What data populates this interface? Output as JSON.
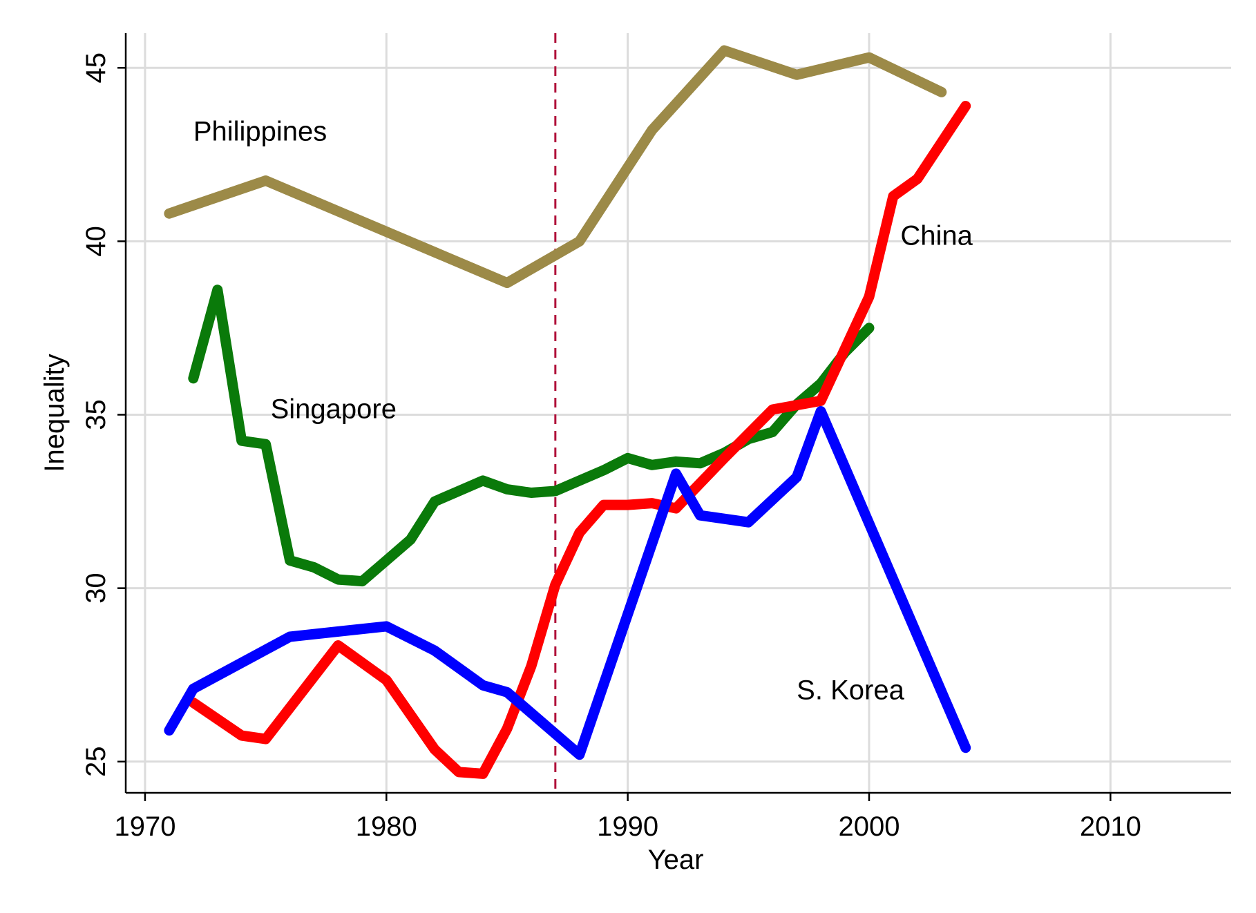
{
  "chart_data": {
    "type": "line",
    "xlabel": "Year",
    "ylabel": "Inequality",
    "xlim": [
      1969.2,
      2015
    ],
    "ylim": [
      24.1,
      46
    ],
    "xticks": [
      1970,
      1980,
      1990,
      2000,
      2010
    ],
    "yticks": [
      25,
      30,
      35,
      40,
      45
    ],
    "grid": true,
    "reference_line": {
      "x": 1987,
      "color": "#b0103a",
      "style": "dashed"
    },
    "series": [
      {
        "name": "Philippines",
        "color": "#9c8a48",
        "label_position": {
          "x": 1972,
          "y": 42.9
        },
        "points": [
          [
            1971,
            40.8
          ],
          [
            1975,
            41.75
          ],
          [
            1985,
            38.8
          ],
          [
            1988,
            40
          ],
          [
            1991,
            43.2
          ],
          [
            1994,
            45.5
          ],
          [
            1997,
            44.8
          ],
          [
            2000,
            45.3
          ],
          [
            2003,
            44.3
          ]
        ]
      },
      {
        "name": "Singapore",
        "color": "#0a7a0a",
        "label_position": {
          "x": 1975.2,
          "y": 34.9
        },
        "points": [
          [
            1972,
            36.05
          ],
          [
            1973,
            38.6
          ],
          [
            1974,
            34.25
          ],
          [
            1975,
            34.15
          ],
          [
            1976,
            30.8
          ],
          [
            1977,
            30.6
          ],
          [
            1978,
            30.25
          ],
          [
            1979,
            30.2
          ],
          [
            1980,
            30.8
          ],
          [
            1981,
            31.4
          ],
          [
            1982,
            32.5
          ],
          [
            1983,
            32.8
          ],
          [
            1984,
            33.1
          ],
          [
            1985,
            32.85
          ],
          [
            1986,
            32.75
          ],
          [
            1987,
            32.8
          ],
          [
            1988,
            33.1
          ],
          [
            1989,
            33.4
          ],
          [
            1990,
            33.75
          ],
          [
            1991,
            33.55
          ],
          [
            1992,
            33.65
          ],
          [
            1993,
            33.6
          ],
          [
            1994,
            33.9
          ],
          [
            1995,
            34.3
          ],
          [
            1996,
            34.5
          ],
          [
            1997,
            35.3
          ],
          [
            1998,
            35.9
          ],
          [
            1999,
            36.8
          ],
          [
            2000,
            37.5
          ]
        ]
      },
      {
        "name": "China",
        "color": "#ff0000",
        "label_position": {
          "x": 2001.3,
          "y": 39.9
        },
        "points": [
          [
            1972,
            26.7
          ],
          [
            1974,
            25.75
          ],
          [
            1975,
            25.65
          ],
          [
            1978,
            28.35
          ],
          [
            1980,
            27.35
          ],
          [
            1982,
            25.35
          ],
          [
            1983,
            24.7
          ],
          [
            1984,
            24.65
          ],
          [
            1985,
            25.95
          ],
          [
            1986,
            27.75
          ],
          [
            1987,
            30.1
          ],
          [
            1988,
            31.6
          ],
          [
            1989,
            32.4
          ],
          [
            1990,
            32.4
          ],
          [
            1991,
            32.45
          ],
          [
            1992,
            32.3
          ],
          [
            1994,
            33.75
          ],
          [
            1996,
            35.15
          ],
          [
            1998,
            35.4
          ],
          [
            2000,
            38.4
          ],
          [
            2001,
            41.3
          ],
          [
            2002,
            41.8
          ],
          [
            2004,
            43.9
          ]
        ]
      },
      {
        "name": "S. Korea",
        "color": "#0000ff",
        "label_position": {
          "x": 1997,
          "y": 26.8
        },
        "points": [
          [
            1971,
            25.9
          ],
          [
            1972,
            27.1
          ],
          [
            1976,
            28.6
          ],
          [
            1980,
            28.9
          ],
          [
            1982,
            28.2
          ],
          [
            1984,
            27.2
          ],
          [
            1985,
            27
          ],
          [
            1988,
            25.2
          ],
          [
            1992,
            33.3
          ],
          [
            1993,
            32.1
          ],
          [
            1995,
            31.9
          ],
          [
            1997,
            33.2
          ],
          [
            1998,
            35.1
          ],
          [
            2004,
            25.4
          ]
        ]
      }
    ]
  }
}
